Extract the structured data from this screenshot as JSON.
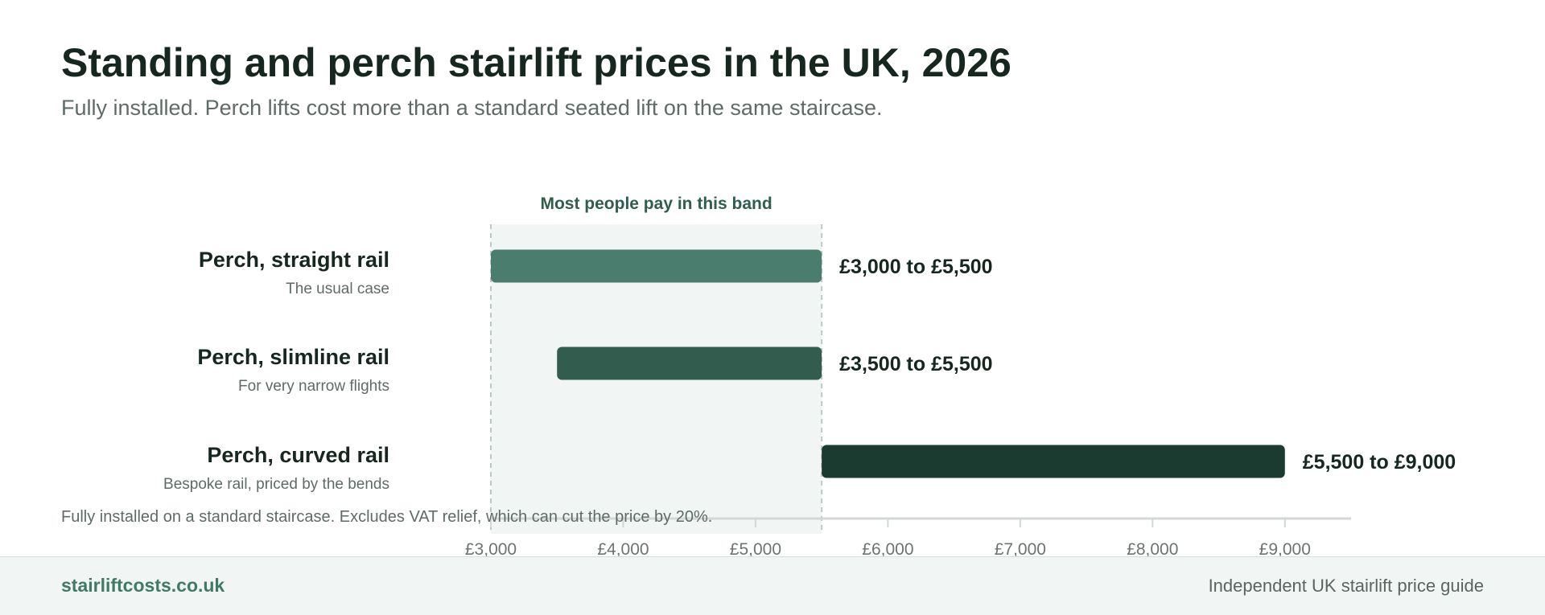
{
  "header": {
    "title": "Standing and perch stairlift prices in the UK, 2026",
    "subtitle": "Fully installed. Perch lifts cost more than a standard seated lift on the same staircase."
  },
  "chart_data": {
    "type": "range-bar",
    "band": {
      "label": "Most people pay in this band",
      "from": 3000,
      "to": 5500
    },
    "rows": [
      {
        "name": "Perch, straight rail",
        "note": "The usual case",
        "low": 3000,
        "high": 5500,
        "label": "£3,000 to £5,500",
        "color": "#4a7d6e"
      },
      {
        "name": "Perch, slimline rail",
        "note": "For very narrow flights",
        "low": 3500,
        "high": 5500,
        "label": "£3,500 to £5,500",
        "color": "#325c4e"
      },
      {
        "name": "Perch, curved rail",
        "note": "Bespoke rail, priced by the bends",
        "low": 5500,
        "high": 9000,
        "label": "£5,500 to £9,000",
        "color": "#1b3b30"
      }
    ],
    "x_ticks": [
      {
        "value": 3000,
        "label": "£3,000"
      },
      {
        "value": 4000,
        "label": "£4,000"
      },
      {
        "value": 5000,
        "label": "£5,000"
      },
      {
        "value": 6000,
        "label": "£6,000"
      },
      {
        "value": 7000,
        "label": "£7,000"
      },
      {
        "value": 8000,
        "label": "£8,000"
      },
      {
        "value": 9000,
        "label": "£9,000"
      }
    ],
    "xlim": [
      3000,
      9500
    ],
    "note": "Fully installed on a standard staircase. Excludes VAT relief, which can cut the price by 20%.",
    "colors": {
      "band_fill": "#f1f6f4",
      "band_line": "#b9cbc4",
      "axis": "#d3d7d5",
      "band_label": "#2f5e4c"
    }
  },
  "footer": {
    "brand": "stairliftcosts.co.uk",
    "tagline": "Independent UK stairlift price guide"
  }
}
